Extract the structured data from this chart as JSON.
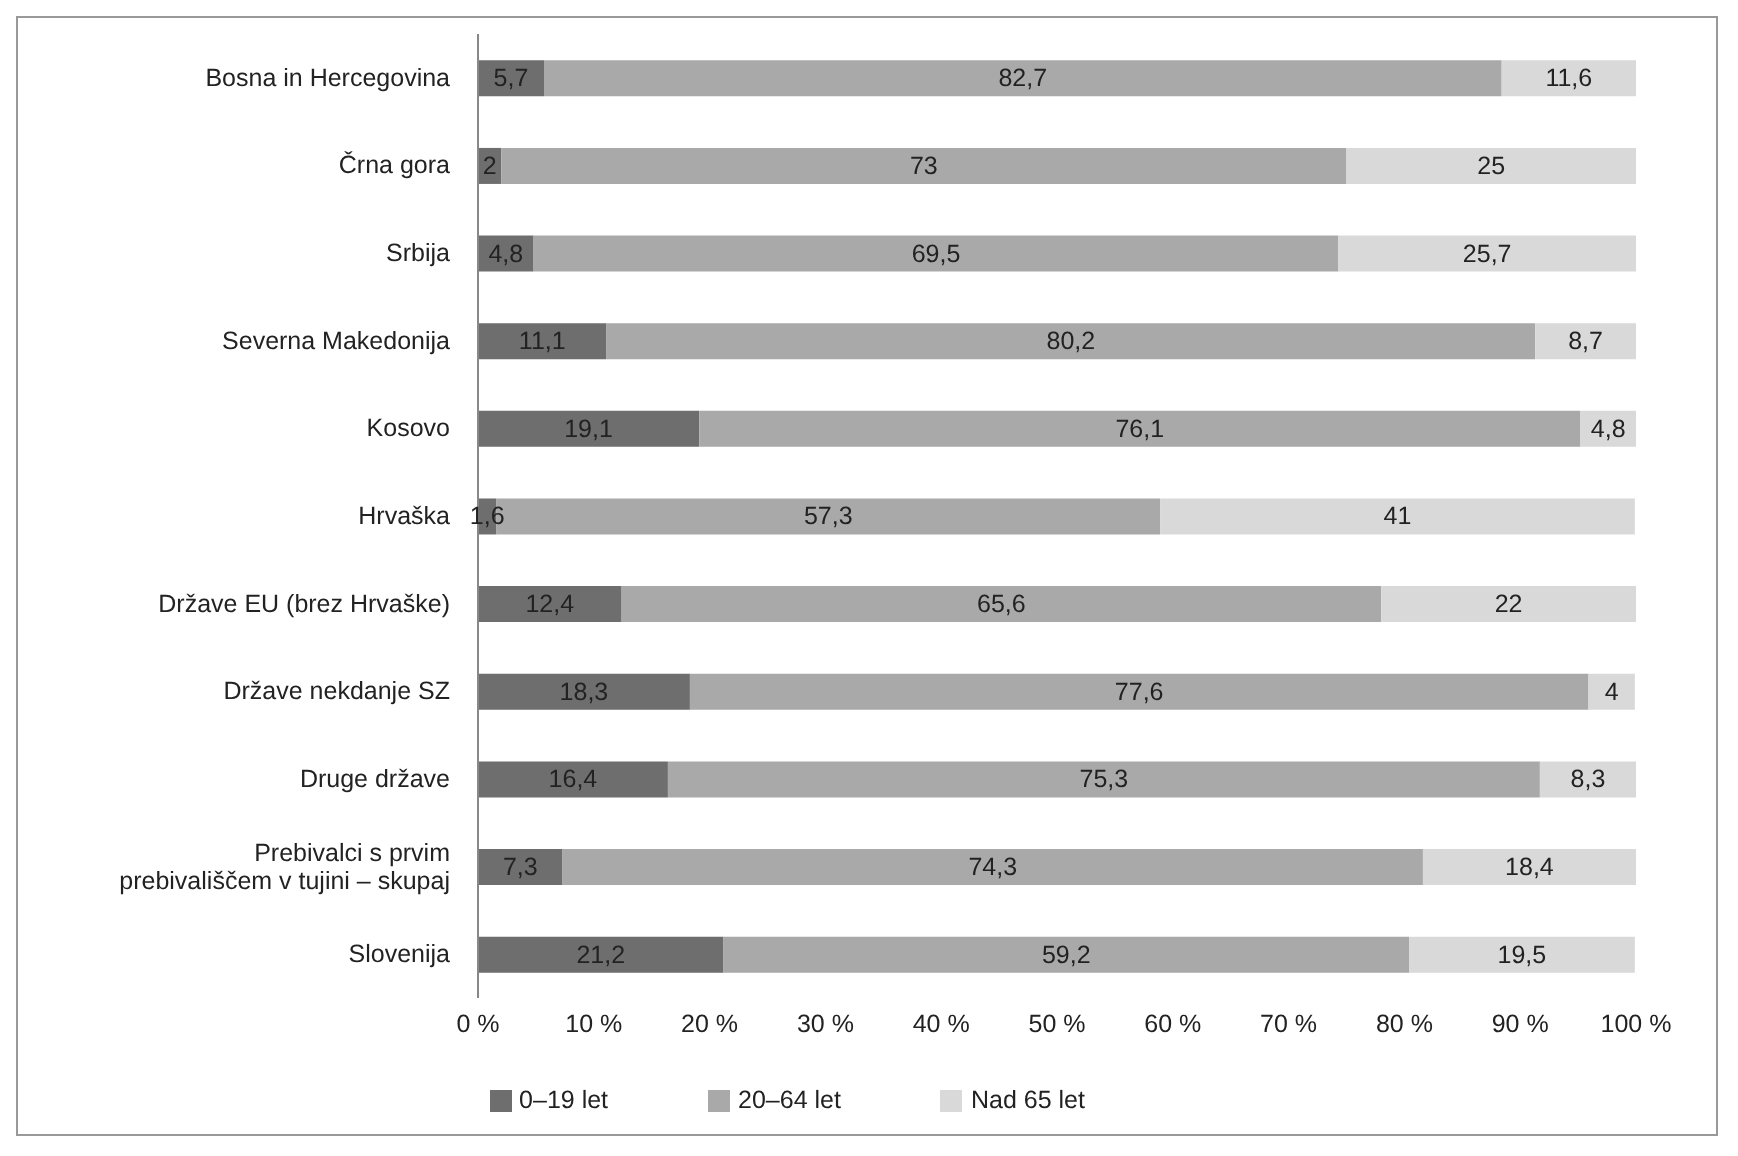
{
  "chart_data": {
    "type": "bar",
    "orientation": "horizontal",
    "stacked": true,
    "categories": [
      "Bosna in Hercegovina",
      "Črna gora",
      "Srbija",
      "Severna Makedonija",
      "Kosovo",
      "Hrvaška",
      "Države EU (brez Hrvaške)",
      "Države nekdanje SZ",
      "Druge države",
      "Prebivalci s prvim prebivališčem v tujini – skupaj",
      "Slovenija"
    ],
    "series": [
      {
        "name": "0–19 let",
        "color": "#6e6e6e",
        "values": [
          5.7,
          2,
          4.8,
          11.1,
          19.1,
          1.6,
          12.4,
          18.3,
          16.4,
          7.3,
          21.2
        ],
        "value_labels": [
          "5,7",
          "2",
          "4,8",
          "11,1",
          "19,1",
          "1,6",
          "12,4",
          "18,3",
          "16,4",
          "7,3",
          "21,2"
        ]
      },
      {
        "name": "20–64 let",
        "color": "#a9a9a9",
        "values": [
          82.7,
          73,
          69.5,
          80.2,
          76.1,
          57.3,
          65.6,
          77.6,
          75.3,
          74.3,
          59.2
        ],
        "value_labels": [
          "82,7",
          "73",
          "69,5",
          "80,2",
          "76,1",
          "57,3",
          "65,6",
          "77,6",
          "75,3",
          "74,3",
          "59,2"
        ]
      },
      {
        "name": "Nad 65 let",
        "color": "#d9d9d9",
        "values": [
          11.6,
          25,
          25.7,
          8.7,
          4.8,
          41,
          22,
          4,
          8.3,
          18.4,
          19.5
        ],
        "value_labels": [
          "11,6",
          "25",
          "25,7",
          "8,7",
          "4,8",
          "41",
          "22",
          "4",
          "8,3",
          "18,4",
          "19,5"
        ]
      }
    ],
    "xlim": [
      0,
      100
    ],
    "xticks": [
      {
        "value": 0,
        "label": "0 %"
      },
      {
        "value": 10,
        "label": "10 %"
      },
      {
        "value": 20,
        "label": "20 %"
      },
      {
        "value": 30,
        "label": "30 %"
      },
      {
        "value": 40,
        "label": "40 %"
      },
      {
        "value": 50,
        "label": "50 %"
      },
      {
        "value": 60,
        "label": "60 %"
      },
      {
        "value": 70,
        "label": "70 %"
      },
      {
        "value": 80,
        "label": "80 %"
      },
      {
        "value": 90,
        "label": "90 %"
      },
      {
        "value": 100,
        "label": "100 %"
      }
    ],
    "grid": false,
    "legend": "bottom"
  }
}
